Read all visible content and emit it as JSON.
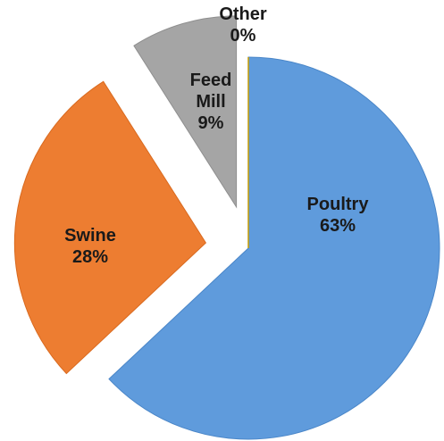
{
  "chart_data": {
    "type": "pie",
    "title": "",
    "slices": [
      {
        "name": "Poultry",
        "label": "63%",
        "value": 63,
        "color": "#5f9bdc",
        "stroke": "#4a86c8",
        "exploded": false
      },
      {
        "name": "Swine",
        "label": "28%",
        "value": 28,
        "color": "#ed7d31",
        "stroke": "#d96a1f",
        "exploded": true
      },
      {
        "name": "Feed Mill",
        "label": "9%",
        "value": 9,
        "color": "#a5a5a5",
        "stroke": "#8f8f8f",
        "exploded": true
      },
      {
        "name": "Other",
        "label": "0%",
        "value": 0,
        "color": "#e0b000",
        "stroke": "#c89c00",
        "exploded": false
      }
    ],
    "legend": "none",
    "data_labels": "inside, category name and percentage"
  }
}
